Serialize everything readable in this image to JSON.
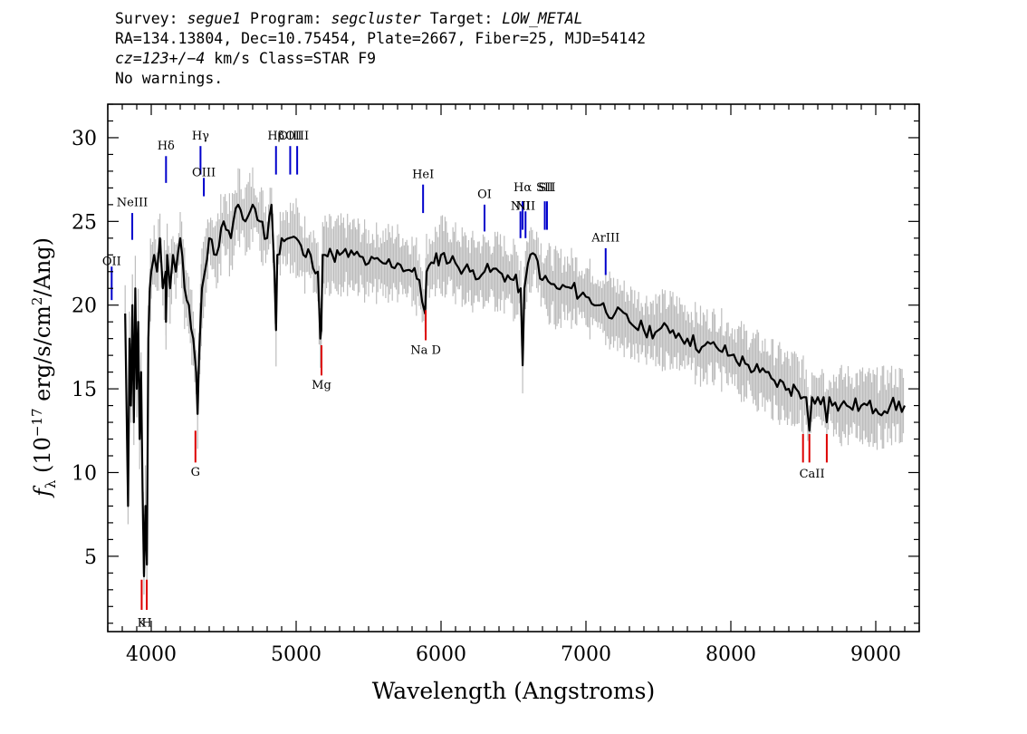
{
  "header": {
    "line1": {
      "survey_label": "Survey: ",
      "survey": "segue1",
      "program_label": " Program: ",
      "program": "segcluster",
      "target_label": " Target: ",
      "target": "LOW_METAL"
    },
    "line2": "RA=134.13804, Dec=10.75454, Plate=2667, Fiber=25, MJD=54142",
    "line3": {
      "cz": "cz=123+/−4",
      "rest": " km/s Class=STAR F9"
    },
    "line4": "No warnings."
  },
  "chart_data": {
    "type": "line",
    "xlabel": "Wavelength (Angstroms)",
    "ylabel": "f_λ (10^-17 erg/s/cm^2/Ang)",
    "xlim": [
      3700,
      9300
    ],
    "ylim": [
      0.5,
      32
    ],
    "x_ticks": [
      4000,
      5000,
      6000,
      7000,
      8000,
      9000
    ],
    "y_ticks": [
      5,
      10,
      15,
      20,
      25,
      30
    ],
    "series": [
      {
        "color": "#000000",
        "x": [
          3820,
          3840,
          3850,
          3860,
          3870,
          3880,
          3890,
          3900,
          3910,
          3920,
          3930,
          3940,
          3950,
          3960,
          3970,
          3980,
          3990,
          4000,
          4020,
          4040,
          4060,
          4080,
          4100,
          4102,
          4110,
          4130,
          4150,
          4170,
          4200,
          4230,
          4260,
          4290,
          4310,
          4320,
          4330,
          4340,
          4350,
          4370,
          4400,
          4450,
          4500,
          4550,
          4600,
          4650,
          4700,
          4750,
          4800,
          4830,
          4850,
          4861,
          4870,
          4900,
          4950,
          5000,
          5050,
          5100,
          5150,
          5167,
          5173,
          5183,
          5200,
          5250,
          5300,
          5400,
          5500,
          5600,
          5700,
          5800,
          5850,
          5890,
          5900,
          5950,
          6000,
          6100,
          6200,
          6300,
          6400,
          6500,
          6550,
          6563,
          6575,
          6600,
          6650,
          6700,
          6800,
          6900,
          7000,
          7100,
          7200,
          7300,
          7400,
          7500,
          7600,
          7700,
          7800,
          7900,
          8000,
          8100,
          8200,
          8300,
          8400,
          8450,
          8500,
          8520,
          8542,
          8560,
          8600,
          8640,
          8662,
          8680,
          8700,
          8800,
          8900,
          9000,
          9100,
          9200
        ],
        "y": [
          19.5,
          8,
          18,
          14,
          20,
          13,
          21,
          15,
          19,
          12,
          16,
          9,
          3.8,
          8,
          4.5,
          18,
          21,
          22,
          23,
          22,
          24,
          21,
          22,
          19,
          23,
          21,
          23,
          22,
          24,
          21,
          20,
          18,
          16,
          13.5,
          17,
          19,
          21,
          22,
          24,
          23,
          25,
          24,
          26,
          25,
          26,
          25,
          24,
          26,
          22,
          18.5,
          23,
          24,
          24,
          24,
          23,
          23,
          22,
          18,
          18.5,
          23,
          23,
          23,
          23,
          23,
          22.5,
          22.5,
          22.5,
          22,
          21.5,
          19.5,
          22,
          22.5,
          23,
          22.5,
          22,
          22,
          22,
          21.5,
          21,
          16.4,
          21,
          22.5,
          23,
          21.5,
          21,
          21,
          20.5,
          20,
          19.5,
          19,
          18.5,
          18.5,
          18.5,
          18,
          17.5,
          17.5,
          17,
          16.5,
          16,
          15.5,
          15,
          15,
          14.5,
          14.5,
          12.5,
          14.5,
          14.5,
          14.5,
          13,
          14.5,
          14,
          14,
          14,
          13.8,
          14,
          14
        ]
      }
    ],
    "emission_lines": [
      {
        "label": "Hδ",
        "x": 4102,
        "y0": 27.3,
        "y1": 28.9,
        "label_y": 29.3
      },
      {
        "label": "Hγ",
        "x": 4340,
        "y0": 27.8,
        "y1": 29.5,
        "label_y": 29.9
      },
      {
        "label": "OIII",
        "x": 4363,
        "y0": 26.5,
        "y1": 27.6,
        "label_y": 27.7
      },
      {
        "label": "Hβ",
        "x": 4861,
        "y0": 27.8,
        "y1": 29.5,
        "label_y": 29.9
      },
      {
        "label": "OIII",
        "x": 4959,
        "y0": 27.8,
        "y1": 29.5,
        "label_y": 29.9
      },
      {
        "label": "OIII",
        "x": 5007,
        "y0": 27.8,
        "y1": 29.5,
        "label_y": 29.9
      },
      {
        "label": "NeIII",
        "x": 3869,
        "y0": 23.9,
        "y1": 25.5,
        "label_y": 25.9
      },
      {
        "label": "OII",
        "x": 3727,
        "y0": 20.3,
        "y1": 22.3,
        "label_y": 22.4
      },
      {
        "label": "HeI",
        "x": 5876,
        "y0": 25.5,
        "y1": 27.2,
        "label_y": 27.6
      },
      {
        "label": "OI",
        "x": 6300,
        "y0": 24.4,
        "y1": 26.0,
        "label_y": 26.4
      },
      {
        "label": "NII",
        "x": 6548,
        "y0": 24.0,
        "y1": 25.6,
        "label_y": 25.7
      },
      {
        "label": "Hα",
        "x": 6563,
        "y0": 24.5,
        "y1": 26.2,
        "label_y": 26.8
      },
      {
        "label": "NII",
        "x": 6583,
        "y0": 24.0,
        "y1": 25.6,
        "label_y": 25.7
      },
      {
        "label": "SII",
        "x": 6716,
        "y0": 24.5,
        "y1": 26.2,
        "label_y": 26.8
      },
      {
        "label": "SII",
        "x": 6731,
        "y0": 24.5,
        "y1": 26.2,
        "label_y": 26.8
      },
      {
        "label": "ArIII",
        "x": 7136,
        "y0": 21.8,
        "y1": 23.4,
        "label_y": 23.8
      }
    ],
    "absorption_lines": [
      {
        "x": 3934,
        "y0": 1.8,
        "y1": 3.6
      },
      {
        "x": 3969,
        "y0": 1.8,
        "y1": 3.6
      },
      {
        "x": 4305,
        "y0": 10.6,
        "y1": 12.5
      },
      {
        "x": 5175,
        "y0": 15.8,
        "y1": 17.6
      },
      {
        "x": 5894,
        "y0": 17.9,
        "y1": 19.7
      },
      {
        "x": 8498,
        "y0": 10.6,
        "y1": 12.3
      },
      {
        "x": 8542,
        "y0": 10.6,
        "y1": 12.3
      },
      {
        "x": 8662,
        "y0": 10.6,
        "y1": 12.3
      }
    ],
    "absorption_labels": [
      {
        "label": "K",
        "x": 3934,
        "y": 0.8
      },
      {
        "label": "H",
        "x": 3969,
        "y": 0.8
      },
      {
        "label": "G",
        "x": 4305,
        "y": 9.8
      },
      {
        "label": "Mg",
        "x": 5175,
        "y": 15.0
      },
      {
        "label": "Na D",
        "x": 5894,
        "y": 17.1
      },
      {
        "label": "CaII",
        "x": 8560,
        "y": 9.7
      }
    ],
    "colors": {
      "spectrum": "#000000",
      "error": "#bdbdbd",
      "emission": "#0000cc",
      "absorption": "#dd0000"
    },
    "grid": false,
    "legend": "none"
  }
}
